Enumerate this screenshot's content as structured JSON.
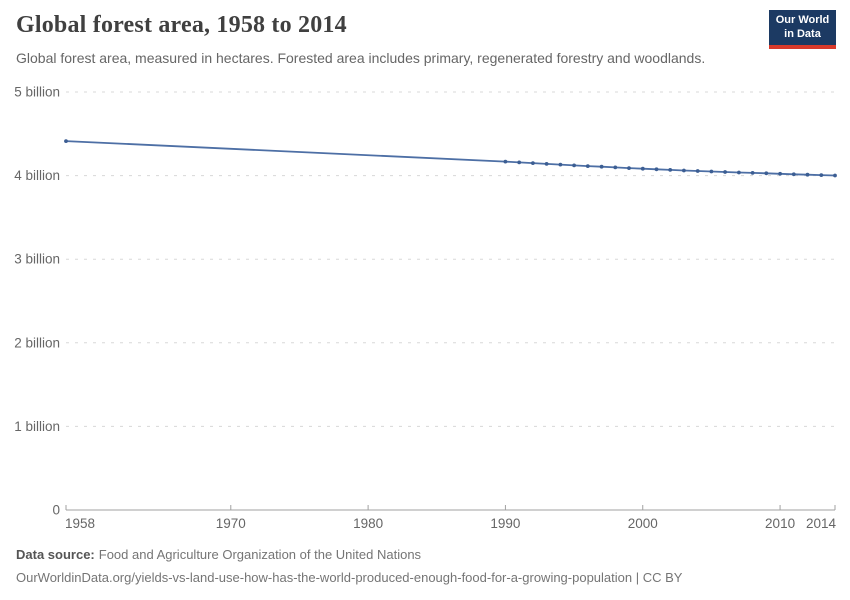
{
  "header": {
    "title": "Global forest area, 1958 to 2014",
    "subtitle": "Global forest area, measured in hectares. Forested area includes primary, regenerated forestry and woodlands.",
    "logo": {
      "line1": "Our World",
      "line2": "in Data",
      "bg_color": "#1c3a63",
      "accent_color": "#d93a2b"
    }
  },
  "footer": {
    "source_label": "Data source:",
    "source_value": "Food and Agriculture Organization of the United Nations",
    "link": "OurWorldinData.org/yields-vs-land-use-how-has-the-world-produced-enough-food-for-a-growing-population | CC BY"
  },
  "chart_data": {
    "type": "line",
    "title": "Global forest area, 1958 to 2014",
    "xlabel": "",
    "ylabel": "",
    "unit": "hectares",
    "grid": "horizontal-dashed",
    "legend": "none",
    "xlim": [
      1958,
      2014
    ],
    "ylim_billion_ha": [
      0,
      5.15
    ],
    "x_ticks": [
      1958,
      1970,
      1980,
      1990,
      2000,
      2010,
      2014
    ],
    "y_ticks": [
      {
        "value": 0,
        "label": "0"
      },
      {
        "value": 1,
        "label": "1 billion"
      },
      {
        "value": 2,
        "label": "2 billion"
      },
      {
        "value": 3,
        "label": "3 billion"
      },
      {
        "value": 4,
        "label": "4 billion"
      },
      {
        "value": 5,
        "label": "5 billion"
      }
    ],
    "series": [
      {
        "name": "Global forest area",
        "color": "#4d6fa5",
        "marker_color": "#3c5e93",
        "points_year_billion_ha": [
          [
            1958,
            4.413
          ],
          [
            1990,
            4.168
          ],
          [
            1991,
            4.158
          ],
          [
            1992,
            4.149
          ],
          [
            1993,
            4.14
          ],
          [
            1994,
            4.131
          ],
          [
            1995,
            4.122
          ],
          [
            1996,
            4.114
          ],
          [
            1997,
            4.106
          ],
          [
            1998,
            4.098
          ],
          [
            1999,
            4.09
          ],
          [
            2000,
            4.082
          ],
          [
            2001,
            4.075
          ],
          [
            2002,
            4.068
          ],
          [
            2003,
            4.061
          ],
          [
            2004,
            4.055
          ],
          [
            2005,
            4.049
          ],
          [
            2006,
            4.043
          ],
          [
            2007,
            4.037
          ],
          [
            2008,
            4.032
          ],
          [
            2009,
            4.027
          ],
          [
            2010,
            4.022
          ],
          [
            2011,
            4.016
          ],
          [
            2012,
            4.011
          ],
          [
            2013,
            4.006
          ],
          [
            2014,
            4.001
          ]
        ]
      }
    ]
  }
}
